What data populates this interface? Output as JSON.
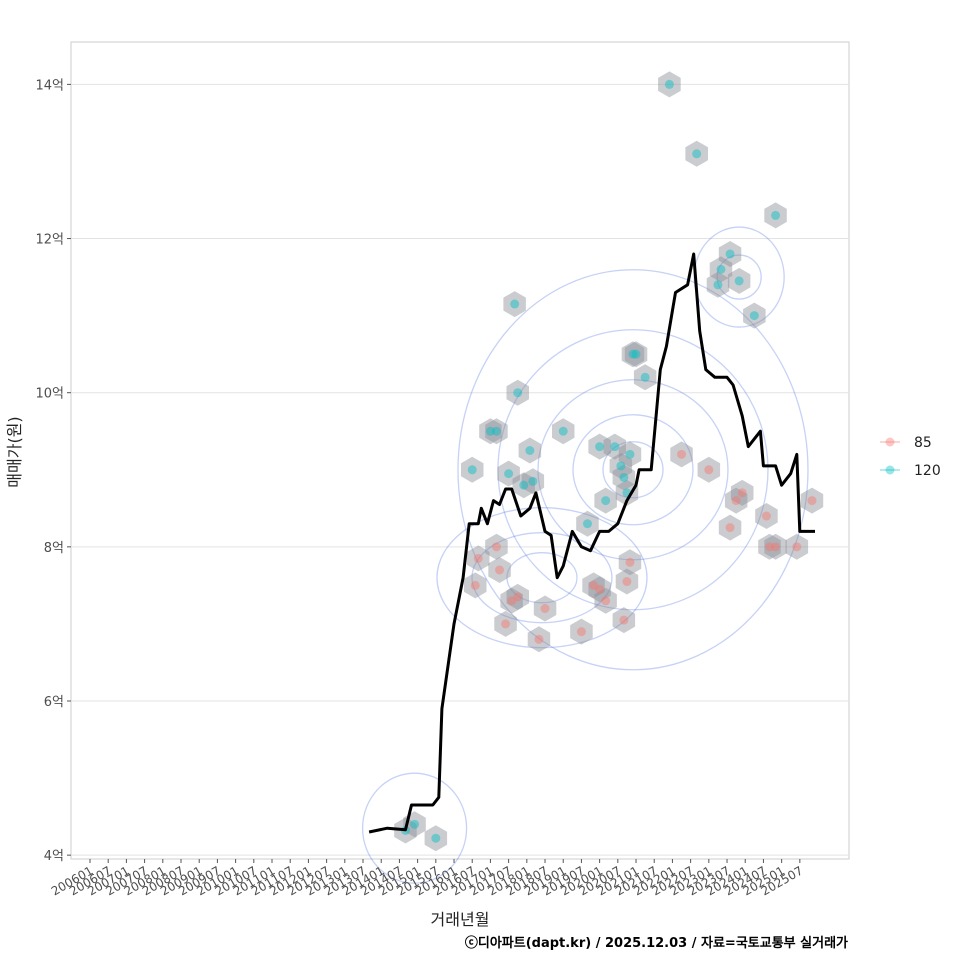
{
  "chart_data": {
    "type": "scatter",
    "xlabel": "거래년월",
    "ylabel": "매매가(원)",
    "caption": "ⓒ디아파트(dapt.kr) / 2025.12.03 / 자료=국토교통부 실거래가",
    "x_range": [
      "2006-01",
      "2025-12"
    ],
    "ylim": [
      3.95,
      14.55
    ],
    "y_ticks": [
      {
        "value": 4,
        "label": "4억"
      },
      {
        "value": 6,
        "label": "6억"
      },
      {
        "value": 8,
        "label": "8억"
      },
      {
        "value": 10,
        "label": "10억"
      },
      {
        "value": 12,
        "label": "12억"
      },
      {
        "value": 14,
        "label": "14억"
      }
    ],
    "x_ticks": [
      "200601",
      "200607",
      "200701",
      "200707",
      "200801",
      "200807",
      "200901",
      "200907",
      "201001",
      "201007",
      "201101",
      "201107",
      "201201",
      "201207",
      "201301",
      "201307",
      "201401",
      "201407",
      "201501",
      "201507",
      "201601",
      "201607",
      "201701",
      "201707",
      "201801",
      "201807",
      "201901",
      "201907",
      "202001",
      "202007",
      "202101",
      "202107",
      "202201",
      "202207",
      "202301",
      "202307",
      "202401",
      "202407",
      "202501",
      "202507"
    ],
    "legend": [
      {
        "name": "85",
        "color": "#F8766D"
      },
      {
        "name": "120",
        "color": "#00BFC4"
      }
    ],
    "series": [
      {
        "name": "85",
        "points": [
          {
            "x": "2016-08",
            "y": 7.5
          },
          {
            "x": "2016-09",
            "y": 7.85
          },
          {
            "x": "2017-03",
            "y": 8.0
          },
          {
            "x": "2017-04",
            "y": 7.7
          },
          {
            "x": "2017-06",
            "y": 7.0
          },
          {
            "x": "2017-08",
            "y": 7.3
          },
          {
            "x": "2017-10",
            "y": 7.35
          },
          {
            "x": "2018-05",
            "y": 6.8
          },
          {
            "x": "2018-07",
            "y": 7.2
          },
          {
            "x": "2019-07",
            "y": 6.9
          },
          {
            "x": "2019-11",
            "y": 7.5
          },
          {
            "x": "2020-01",
            "y": 7.45
          },
          {
            "x": "2020-03",
            "y": 7.3
          },
          {
            "x": "2020-09",
            "y": 7.05
          },
          {
            "x": "2020-10",
            "y": 7.55
          },
          {
            "x": "2020-11",
            "y": 7.8
          },
          {
            "x": "2022-04",
            "y": 9.2
          },
          {
            "x": "2023-01",
            "y": 9.0
          },
          {
            "x": "2023-08",
            "y": 8.25
          },
          {
            "x": "2023-10",
            "y": 8.6
          },
          {
            "x": "2023-12",
            "y": 8.7
          },
          {
            "x": "2024-08",
            "y": 8.4
          },
          {
            "x": "2024-09",
            "y": 8.0
          },
          {
            "x": "2024-11",
            "y": 8.0
          },
          {
            "x": "2025-06",
            "y": 8.0
          },
          {
            "x": "2025-11",
            "y": 8.6
          }
        ]
      },
      {
        "name": "120",
        "points": [
          {
            "x": "2014-09",
            "y": 4.32
          },
          {
            "x": "2014-12",
            "y": 4.4
          },
          {
            "x": "2015-07",
            "y": 4.22
          },
          {
            "x": "2016-07",
            "y": 9.0
          },
          {
            "x": "2017-01",
            "y": 9.5
          },
          {
            "x": "2017-03",
            "y": 9.5
          },
          {
            "x": "2017-07",
            "y": 8.95
          },
          {
            "x": "2017-09",
            "y": 11.15
          },
          {
            "x": "2017-10",
            "y": 10.0
          },
          {
            "x": "2017-12",
            "y": 8.8
          },
          {
            "x": "2018-02",
            "y": 9.25
          },
          {
            "x": "2018-03",
            "y": 8.85
          },
          {
            "x": "2019-01",
            "y": 9.5
          },
          {
            "x": "2019-09",
            "y": 8.3
          },
          {
            "x": "2020-01",
            "y": 9.3
          },
          {
            "x": "2020-03",
            "y": 8.6
          },
          {
            "x": "2020-06",
            "y": 9.3
          },
          {
            "x": "2020-08",
            "y": 9.05
          },
          {
            "x": "2020-09",
            "y": 8.9
          },
          {
            "x": "2020-10",
            "y": 8.7
          },
          {
            "x": "2020-11",
            "y": 9.2
          },
          {
            "x": "2020-12",
            "y": 10.5
          },
          {
            "x": "2021-01",
            "y": 10.5
          },
          {
            "x": "2021-04",
            "y": 10.2
          },
          {
            "x": "2021-12",
            "y": 14.0
          },
          {
            "x": "2022-09",
            "y": 13.1
          },
          {
            "x": "2023-04",
            "y": 11.4
          },
          {
            "x": "2023-05",
            "y": 11.6
          },
          {
            "x": "2023-08",
            "y": 11.8
          },
          {
            "x": "2023-11",
            "y": 11.45
          },
          {
            "x": "2024-04",
            "y": 11.0
          },
          {
            "x": "2024-11",
            "y": 12.3
          }
        ]
      }
    ],
    "median_line": [
      {
        "x": "2013-09",
        "y": 4.3
      },
      {
        "x": "2014-03",
        "y": 4.35
      },
      {
        "x": "2014-09",
        "y": 4.33
      },
      {
        "x": "2014-11",
        "y": 4.65
      },
      {
        "x": "2015-06",
        "y": 4.65
      },
      {
        "x": "2015-08",
        "y": 4.75
      },
      {
        "x": "2015-09",
        "y": 5.9
      },
      {
        "x": "2016-01",
        "y": 7.0
      },
      {
        "x": "2016-04",
        "y": 7.6
      },
      {
        "x": "2016-06",
        "y": 8.3
      },
      {
        "x": "2016-09",
        "y": 8.3
      },
      {
        "x": "2016-10",
        "y": 8.5
      },
      {
        "x": "2016-12",
        "y": 8.3
      },
      {
        "x": "2017-02",
        "y": 8.6
      },
      {
        "x": "2017-04",
        "y": 8.55
      },
      {
        "x": "2017-06",
        "y": 8.75
      },
      {
        "x": "2017-08",
        "y": 8.75
      },
      {
        "x": "2017-11",
        "y": 8.4
      },
      {
        "x": "2018-02",
        "y": 8.5
      },
      {
        "x": "2018-04",
        "y": 8.7
      },
      {
        "x": "2018-07",
        "y": 8.2
      },
      {
        "x": "2018-09",
        "y": 8.15
      },
      {
        "x": "2018-11",
        "y": 7.6
      },
      {
        "x": "2019-01",
        "y": 7.75
      },
      {
        "x": "2019-04",
        "y": 8.2
      },
      {
        "x": "2019-07",
        "y": 8.0
      },
      {
        "x": "2019-10",
        "y": 7.95
      },
      {
        "x": "2020-01",
        "y": 8.2
      },
      {
        "x": "2020-04",
        "y": 8.2
      },
      {
        "x": "2020-07",
        "y": 8.3
      },
      {
        "x": "2020-10",
        "y": 8.6
      },
      {
        "x": "2021-01",
        "y": 8.8
      },
      {
        "x": "2021-02",
        "y": 9.0
      },
      {
        "x": "2021-06",
        "y": 9.0
      },
      {
        "x": "2021-09",
        "y": 10.3
      },
      {
        "x": "2021-11",
        "y": 10.6
      },
      {
        "x": "2022-02",
        "y": 11.3
      },
      {
        "x": "2022-06",
        "y": 11.4
      },
      {
        "x": "2022-08",
        "y": 11.8
      },
      {
        "x": "2022-10",
        "y": 10.8
      },
      {
        "x": "2022-12",
        "y": 10.3
      },
      {
        "x": "2023-03",
        "y": 10.2
      },
      {
        "x": "2023-07",
        "y": 10.2
      },
      {
        "x": "2023-09",
        "y": 10.1
      },
      {
        "x": "2023-12",
        "y": 9.7
      },
      {
        "x": "2024-02",
        "y": 9.3
      },
      {
        "x": "2024-04",
        "y": 9.4
      },
      {
        "x": "2024-06",
        "y": 9.5
      },
      {
        "x": "2024-07",
        "y": 9.05
      },
      {
        "x": "2024-11",
        "y": 9.05
      },
      {
        "x": "2025-01",
        "y": 8.8
      },
      {
        "x": "2025-04",
        "y": 8.95
      },
      {
        "x": "2025-06",
        "y": 9.2
      },
      {
        "x": "2025-07",
        "y": 8.2
      },
      {
        "x": "2025-12",
        "y": 8.2
      }
    ],
    "density_centers": [
      {
        "x": "2020-12",
        "y": 9.0
      },
      {
        "x": "2018-06",
        "y": 7.6
      },
      {
        "x": "2023-11",
        "y": 11.5
      },
      {
        "x": "2014-12",
        "y": 4.35
      }
    ]
  }
}
